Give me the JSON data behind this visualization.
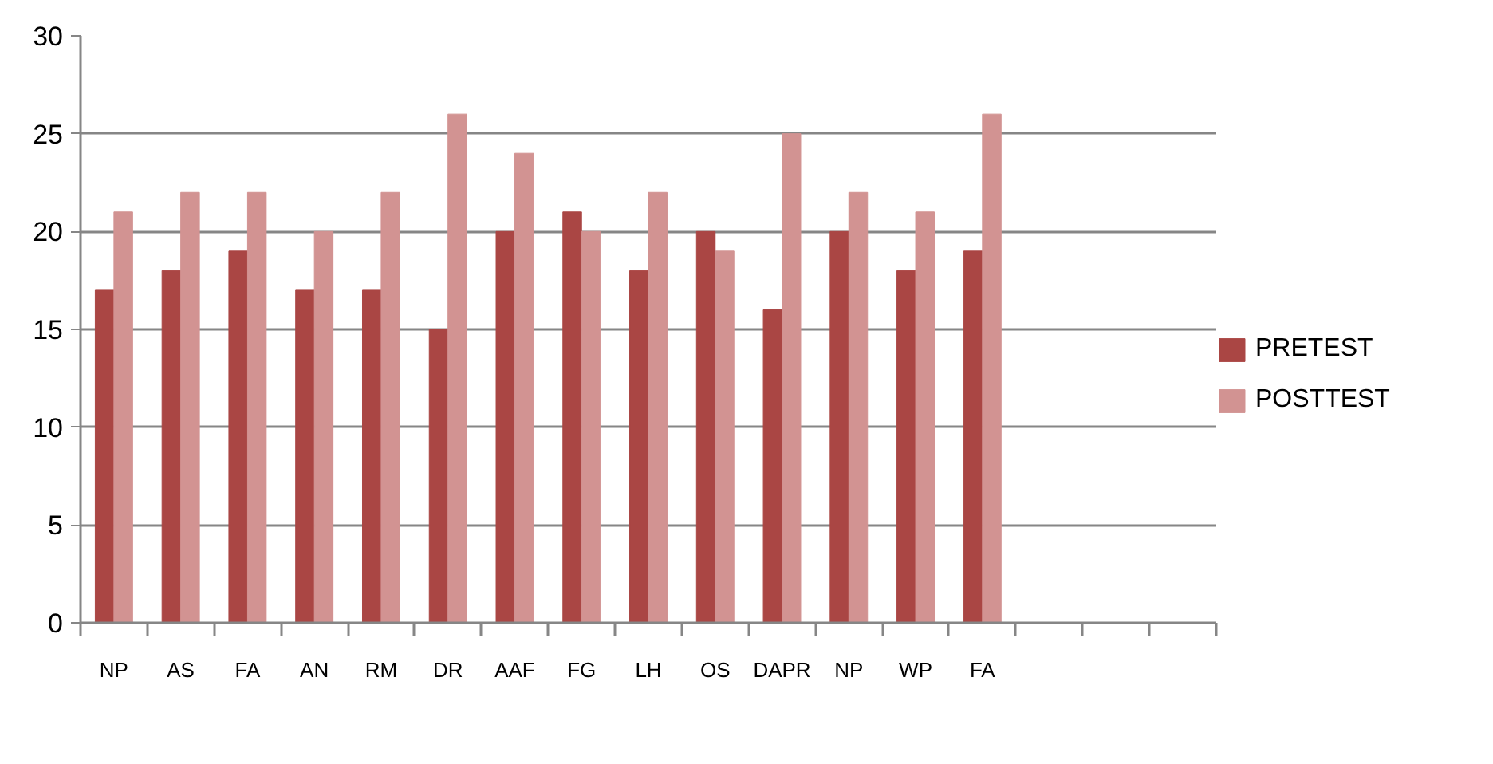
{
  "chart_data": {
    "type": "bar",
    "categories": [
      "NP",
      "AS",
      "FA",
      "AN",
      "RM",
      "DR",
      "AAF",
      "FG",
      "LH",
      "OS",
      "DAPR",
      "NP",
      "WP",
      "FA",
      null,
      null,
      null
    ],
    "series": [
      {
        "name": "PRETEST",
        "color": "#aa4644",
        "values": [
          17,
          18,
          19,
          17,
          17,
          15,
          20,
          21,
          18,
          20,
          16,
          20,
          18,
          19,
          null,
          null,
          null
        ]
      },
      {
        "name": "POSTTEST",
        "color": "#d29392",
        "values": [
          21,
          22,
          22,
          20,
          22,
          26,
          24,
          20,
          22,
          19,
          25,
          22,
          21,
          26,
          null,
          null,
          null
        ]
      }
    ],
    "ylim": [
      0,
      30
    ],
    "yticks": [
      0,
      5,
      10,
      15,
      20,
      25,
      30
    ],
    "grid": "y",
    "legend": "right"
  }
}
